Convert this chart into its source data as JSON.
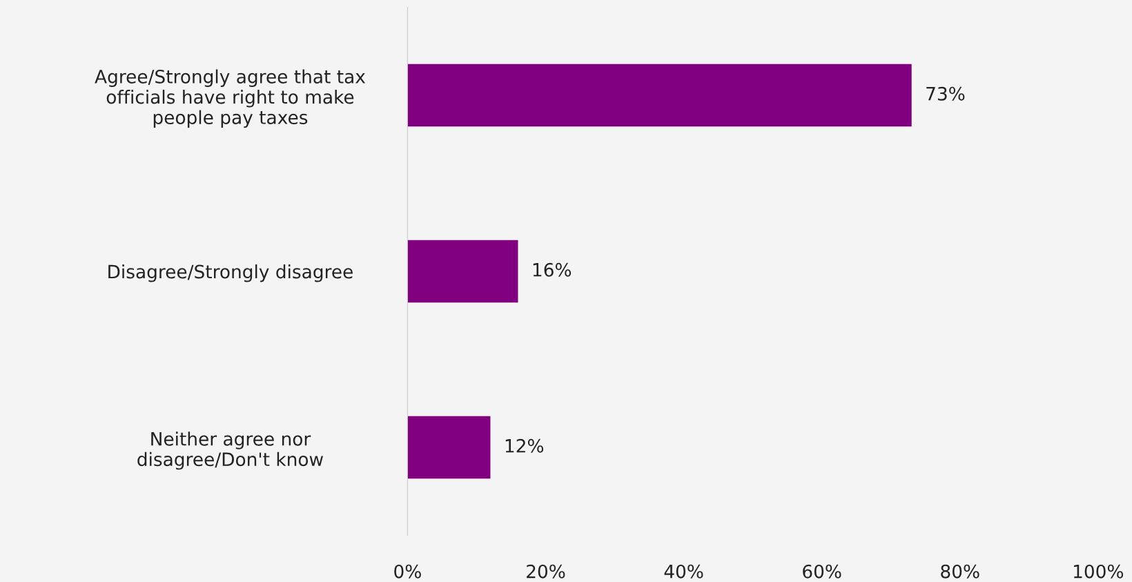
{
  "chart_data": {
    "type": "bar",
    "orientation": "horizontal",
    "categories": [
      "Agree/Strongly agree that tax\nofficials have right to make\npeople pay taxes",
      "Disagree/Strongly disagree",
      "Neither agree nor\ndisagree/Don't know"
    ],
    "values": [
      73,
      16,
      12
    ],
    "color": "#800080",
    "value_labels": [
      "73%",
      "16%",
      "12%"
    ],
    "xlim": [
      0,
      100
    ],
    "xticks": [
      {
        "value": 0,
        "label": "0%"
      },
      {
        "value": 20,
        "label": "20%"
      },
      {
        "value": 40,
        "label": "40%"
      },
      {
        "value": 60,
        "label": "60%"
      },
      {
        "value": 80,
        "label": "80%"
      },
      {
        "value": 100,
        "label": "100%"
      }
    ],
    "grid": false
  }
}
